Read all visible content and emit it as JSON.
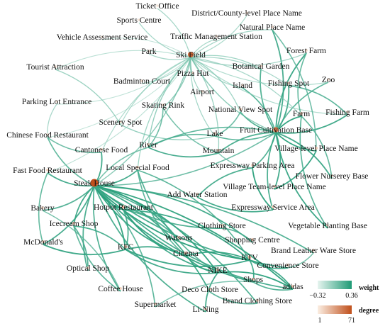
{
  "nodes": [
    {
      "id": "ticket-office",
      "label": "Ticket Office",
      "degree": 4
    },
    {
      "id": "sports-centre",
      "label": "Sports Centre",
      "degree": 4
    },
    {
      "id": "district-county-level-place-name",
      "label": "District/County-level Place Name",
      "degree": 5
    },
    {
      "id": "natural-place-name",
      "label": "Natural Place Name",
      "degree": 6
    },
    {
      "id": "vehicle-assessment-service",
      "label": "Vehicle Assessment Service",
      "degree": 3
    },
    {
      "id": "traffic-management-station",
      "label": "Traffic Management Station",
      "degree": 5
    },
    {
      "id": "forest-farm",
      "label": "Forest Farm",
      "degree": 7
    },
    {
      "id": "park",
      "label": "Park",
      "degree": 6
    },
    {
      "id": "ski-field",
      "label": "Ski Field",
      "degree": 45
    },
    {
      "id": "botanical-garden",
      "label": "Botanical Garden",
      "degree": 8
    },
    {
      "id": "tourist-attraction",
      "label": "Tourist Attraction",
      "degree": 5
    },
    {
      "id": "pizza-hut",
      "label": "Pizza Hut",
      "degree": 7
    },
    {
      "id": "zoo",
      "label": "Zoo",
      "degree": 6
    },
    {
      "id": "badminton-court",
      "label": "Badminton Court",
      "degree": 5
    },
    {
      "id": "island",
      "label": "Island",
      "degree": 6
    },
    {
      "id": "fishing-spot",
      "label": "Fishing Spot",
      "degree": 8
    },
    {
      "id": "airport",
      "label": "Airport",
      "degree": 6
    },
    {
      "id": "parking-lot-entrance",
      "label": "Parking Lot Entrance",
      "degree": 4
    },
    {
      "id": "skating-rink",
      "label": "Skating Rink",
      "degree": 7
    },
    {
      "id": "national-view-spot",
      "label": "National View Spot",
      "degree": 9
    },
    {
      "id": "farm",
      "label": "Farm",
      "degree": 12
    },
    {
      "id": "fishing-farm",
      "label": "Fishing Farm",
      "degree": 8
    },
    {
      "id": "scenery-spot",
      "label": "Scenery Spot",
      "degree": 6
    },
    {
      "id": "fruit-cultivation-base",
      "label": "Fruit Cultivation Base",
      "degree": 40
    },
    {
      "id": "lake",
      "label": "Lake",
      "degree": 8
    },
    {
      "id": "chinese-food-restaurant",
      "label": "Chinese Food Restaurant",
      "degree": 6
    },
    {
      "id": "river",
      "label": "River",
      "degree": 9
    },
    {
      "id": "mountain",
      "label": "Mountain",
      "degree": 10
    },
    {
      "id": "village-level-place-name",
      "label": "Village-level Place Name",
      "degree": 12
    },
    {
      "id": "cantonese-food",
      "label": "Cantonese Food",
      "degree": 9
    },
    {
      "id": "expressway-parking-area",
      "label": "Expressway Parking Area",
      "degree": 9
    },
    {
      "id": "local-special-food",
      "label": "Local Special Food",
      "degree": 11
    },
    {
      "id": "fast-food-restaurant",
      "label": "Fast Food Restaurant",
      "degree": 10
    },
    {
      "id": "flower-nursery-base",
      "label": "Flower Nurserey Base",
      "degree": 8
    },
    {
      "id": "steak-house",
      "label": "Steak House",
      "degree": 71
    },
    {
      "id": "village-team-level-place-name",
      "label": "Village Team-level Place Name",
      "degree": 10
    },
    {
      "id": "add-water-station",
      "label": "Add Water Station",
      "degree": 7
    },
    {
      "id": "bakery",
      "label": "Bakery",
      "degree": 8
    },
    {
      "id": "hotpot-restaurant",
      "label": "Hotpot Restaurant",
      "degree": 18
    },
    {
      "id": "expressway-service-area",
      "label": "Expressway Service Area",
      "degree": 12
    },
    {
      "id": "clothing-store",
      "label": "Clothing Store",
      "degree": 10
    },
    {
      "id": "icecream-shop",
      "label": "Icecream Shop",
      "degree": 12
    },
    {
      "id": "vegetable-planting-base",
      "label": "Vegetable Planting Base",
      "degree": 7
    },
    {
      "id": "watsons",
      "label": "Watsons",
      "degree": 10
    },
    {
      "id": "shopping-centre",
      "label": "Shopping Centre",
      "degree": 12
    },
    {
      "id": "mcdonalds",
      "label": "McDonald's",
      "degree": 10
    },
    {
      "id": "kfc",
      "label": "KFC",
      "degree": 14
    },
    {
      "id": "cinema",
      "label": "Cinema",
      "degree": 14
    },
    {
      "id": "brand-leather-ware-store",
      "label": "Brand Leather Ware Store",
      "degree": 9
    },
    {
      "id": "ktv",
      "label": "KTV",
      "degree": 18
    },
    {
      "id": "optical-shop",
      "label": "Optical Shop",
      "degree": 9
    },
    {
      "id": "nike",
      "label": "NIKE",
      "degree": 14
    },
    {
      "id": "convenience-store",
      "label": "Convenience Store",
      "degree": 11
    },
    {
      "id": "shops",
      "label": "Shops",
      "degree": 12
    },
    {
      "id": "coffee-house",
      "label": "Coffee House",
      "degree": 9
    },
    {
      "id": "adidas",
      "label": "adidas",
      "degree": 12
    },
    {
      "id": "deco-cloth-store",
      "label": "Deco Cloth Store",
      "degree": 11
    },
    {
      "id": "brand-clothing-store",
      "label": "Brand Clothing Store",
      "degree": 10
    },
    {
      "id": "supermarket",
      "label": "Supermarket",
      "degree": 9
    },
    {
      "id": "li-ning",
      "label": "Li-Ning",
      "degree": 10
    }
  ],
  "edges": [
    {
      "source": "steak-house",
      "target": "hotpot-restaurant",
      "weight": 0.36
    },
    {
      "source": "steak-house",
      "target": "kfc",
      "weight": 0.33
    },
    {
      "source": "steak-house",
      "target": "cinema",
      "weight": 0.32
    },
    {
      "source": "steak-house",
      "target": "nike",
      "weight": 0.34
    },
    {
      "source": "steak-house",
      "target": "ktv",
      "weight": 0.35
    },
    {
      "source": "steak-house",
      "target": "adidas",
      "weight": 0.33
    },
    {
      "source": "steak-house",
      "target": "shops",
      "weight": 0.32
    },
    {
      "source": "steak-house",
      "target": "deco-cloth-store",
      "weight": 0.3
    },
    {
      "source": "steak-house",
      "target": "li-ning",
      "weight": 0.28
    },
    {
      "source": "steak-house",
      "target": "brand-clothing-store",
      "weight": 0.27
    },
    {
      "source": "steak-house",
      "target": "convenience-store",
      "weight": 0.29
    },
    {
      "source": "steak-house",
      "target": "watsons",
      "weight": 0.31
    },
    {
      "source": "steak-house",
      "target": "icecream-shop",
      "weight": 0.3
    },
    {
      "source": "steak-house",
      "target": "mcdonalds",
      "weight": 0.29
    },
    {
      "source": "steak-house",
      "target": "optical-shop",
      "weight": 0.28
    },
    {
      "source": "steak-house",
      "target": "bakery",
      "weight": 0.26
    },
    {
      "source": "steak-house",
      "target": "coffee-house",
      "weight": 0.27
    },
    {
      "source": "steak-house",
      "target": "fast-food-restaurant",
      "weight": 0.29
    },
    {
      "source": "steak-house",
      "target": "cantonese-food",
      "weight": 0.3
    },
    {
      "source": "steak-house",
      "target": "chinese-food-restaurant",
      "weight": 0.22
    },
    {
      "source": "steak-house",
      "target": "local-special-food",
      "weight": 0.3
    },
    {
      "source": "steak-house",
      "target": "shopping-centre",
      "weight": 0.3
    },
    {
      "source": "steak-house",
      "target": "clothing-store",
      "weight": 0.28
    },
    {
      "source": "steak-house",
      "target": "supermarket",
      "weight": 0.24
    },
    {
      "source": "steak-house",
      "target": "ski-field",
      "weight": 0.12
    },
    {
      "source": "steak-house",
      "target": "river",
      "weight": 0.18
    },
    {
      "source": "steak-house",
      "target": "fruit-cultivation-base",
      "weight": 0.2
    },
    {
      "source": "steak-house",
      "target": "brand-leather-ware-store",
      "weight": 0.27
    },
    {
      "source": "hotpot-restaurant",
      "target": "nike",
      "weight": 0.3
    },
    {
      "source": "hotpot-restaurant",
      "target": "ktv",
      "weight": 0.31
    },
    {
      "source": "hotpot-restaurant",
      "target": "cinema",
      "weight": 0.3
    },
    {
      "source": "hotpot-restaurant",
      "target": "kfc",
      "weight": 0.28
    },
    {
      "source": "hotpot-restaurant",
      "target": "adidas",
      "weight": 0.29
    },
    {
      "source": "hotpot-restaurant",
      "target": "watsons",
      "weight": 0.27
    },
    {
      "source": "kfc",
      "target": "nike",
      "weight": 0.3
    },
    {
      "source": "kfc",
      "target": "cinema",
      "weight": 0.29
    },
    {
      "source": "kfc",
      "target": "ktv",
      "weight": 0.31
    },
    {
      "source": "kfc",
      "target": "mcdonalds",
      "weight": 0.32
    },
    {
      "source": "kfc",
      "target": "icecream-shop",
      "weight": 0.28
    },
    {
      "source": "cinema",
      "target": "ktv",
      "weight": 0.32
    },
    {
      "source": "cinema",
      "target": "nike",
      "weight": 0.3
    },
    {
      "source": "nike",
      "target": "adidas",
      "weight": 0.34
    },
    {
      "source": "nike",
      "target": "li-ning",
      "weight": 0.3
    },
    {
      "source": "ktv",
      "target": "shops",
      "weight": 0.29
    },
    {
      "source": "ktv",
      "target": "convenience-store",
      "weight": 0.28
    },
    {
      "source": "ktv",
      "target": "adidas",
      "weight": 0.3
    },
    {
      "source": "local-special-food",
      "target": "nike",
      "weight": 0.26
    },
    {
      "source": "local-special-food",
      "target": "ktv",
      "weight": 0.25
    },
    {
      "source": "local-special-food",
      "target": "cinema",
      "weight": 0.24
    },
    {
      "source": "icecream-shop",
      "target": "optical-shop",
      "weight": 0.26
    },
    {
      "source": "icecream-shop",
      "target": "coffee-house",
      "weight": 0.24
    },
    {
      "source": "fruit-cultivation-base",
      "target": "farm",
      "weight": 0.33
    },
    {
      "source": "fruit-cultivation-base",
      "target": "fishing-farm",
      "weight": 0.3
    },
    {
      "source": "fruit-cultivation-base",
      "target": "forest-farm",
      "weight": 0.31
    },
    {
      "source": "fruit-cultivation-base",
      "target": "natural-place-name",
      "weight": 0.29
    },
    {
      "source": "fruit-cultivation-base",
      "target": "botanical-garden",
      "weight": 0.27
    },
    {
      "source": "fruit-cultivation-base",
      "target": "fishing-spot",
      "weight": 0.3
    },
    {
      "source": "fruit-cultivation-base",
      "target": "zoo",
      "weight": 0.24
    },
    {
      "source": "fruit-cultivation-base",
      "target": "island",
      "weight": 0.25
    },
    {
      "source": "fruit-cultivation-base",
      "target": "national-view-spot",
      "weight": 0.28
    },
    {
      "source": "fruit-cultivation-base",
      "target": "village-level-place-name",
      "weight": 0.33
    },
    {
      "source": "fruit-cultivation-base",
      "target": "flower-nursery-base",
      "weight": 0.3
    },
    {
      "source": "fruit-cultivation-base",
      "target": "vegetable-planting-base",
      "weight": 0.31
    },
    {
      "source": "fruit-cultivation-base",
      "target": "expressway-parking-area",
      "weight": 0.27
    },
    {
      "source": "fruit-cultivation-base",
      "target": "expressway-service-area",
      "weight": 0.28
    },
    {
      "source": "fruit-cultivation-base",
      "target": "village-team-level-place-name",
      "weight": 0.3
    },
    {
      "source": "fruit-cultivation-base",
      "target": "mountain",
      "weight": 0.28
    },
    {
      "source": "fruit-cultivation-base",
      "target": "lake",
      "weight": 0.25
    },
    {
      "source": "fruit-cultivation-base",
      "target": "river",
      "weight": 0.24
    },
    {
      "source": "fruit-cultivation-base",
      "target": "ski-field",
      "weight": 0.12
    },
    {
      "source": "expressway-parking-area",
      "target": "expressway-service-area",
      "weight": 0.33
    },
    {
      "source": "expressway-service-area",
      "target": "add-water-station",
      "weight": 0.3
    },
    {
      "source": "expressway-parking-area",
      "target": "add-water-station",
      "weight": 0.28
    },
    {
      "source": "village-level-place-name",
      "target": "village-team-level-place-name",
      "weight": 0.32
    },
    {
      "source": "river",
      "target": "mountain",
      "weight": 0.29
    },
    {
      "source": "river",
      "target": "lake",
      "weight": 0.24
    },
    {
      "source": "ski-field",
      "target": "ticket-office",
      "weight": 0.05
    },
    {
      "source": "ski-field",
      "target": "sports-centre",
      "weight": 0.04
    },
    {
      "source": "ski-field",
      "target": "district-county-level-place-name",
      "weight": 0.02
    },
    {
      "source": "ski-field",
      "target": "traffic-management-station",
      "weight": 0.03
    },
    {
      "source": "ski-field",
      "target": "vehicle-assessment-service",
      "weight": -0.05
    },
    {
      "source": "ski-field",
      "target": "park",
      "weight": 0.04
    },
    {
      "source": "ski-field",
      "target": "pizza-hut",
      "weight": 0.06
    },
    {
      "source": "ski-field",
      "target": "badminton-court",
      "weight": 0.03
    },
    {
      "source": "ski-field",
      "target": "airport",
      "weight": 0.05
    },
    {
      "source": "ski-field",
      "target": "skating-rink",
      "weight": 0.12
    },
    {
      "source": "ski-field",
      "target": "tourist-attraction",
      "weight": -0.02
    },
    {
      "source": "ski-field",
      "target": "parking-lot-entrance",
      "weight": -0.04
    },
    {
      "source": "ski-field",
      "target": "scenery-spot",
      "weight": 0.02
    },
    {
      "source": "ski-field",
      "target": "natural-place-name",
      "weight": 0.05
    },
    {
      "source": "ski-field",
      "target": "forest-farm",
      "weight": 0.04
    },
    {
      "source": "ski-field",
      "target": "botanical-garden",
      "weight": 0.06
    },
    {
      "source": "ski-field",
      "target": "island",
      "weight": 0.03
    },
    {
      "source": "ski-field",
      "target": "fishing-spot",
      "weight": 0.04
    },
    {
      "source": "ski-field",
      "target": "zoo",
      "weight": 0.02
    },
    {
      "source": "ski-field",
      "target": "national-view-spot",
      "weight": 0.07
    },
    {
      "source": "ski-field",
      "target": "lake",
      "weight": 0.05
    },
    {
      "source": "ski-field",
      "target": "mountain",
      "weight": 0.08
    },
    {
      "source": "ski-field",
      "target": "river",
      "weight": 0.1
    },
    {
      "source": "ski-field",
      "target": "chinese-food-restaurant",
      "weight": -0.06
    },
    {
      "source": "ski-field",
      "target": "cantonese-food",
      "weight": 0.02
    },
    {
      "source": "ski-field",
      "target": "fast-food-restaurant",
      "weight": -0.03
    },
    {
      "source": "ski-field",
      "target": "local-special-food",
      "weight": 0.06
    },
    {
      "source": "ski-field",
      "target": "farm",
      "weight": 0.04
    },
    {
      "source": "ski-field",
      "target": "fishing-farm",
      "weight": 0.02
    },
    {
      "source": "skating-rink",
      "target": "river",
      "weight": 0.2
    },
    {
      "source": "skating-rink",
      "target": "mountain",
      "weight": 0.18
    },
    {
      "source": "national-view-spot",
      "target": "lake",
      "weight": 0.2
    },
    {
      "source": "scenery-spot",
      "target": "lake",
      "weight": 0.1
    },
    {
      "source": "tourist-attraction",
      "target": "scenery-spot",
      "weight": 0.08
    },
    {
      "source": "parking-lot-entrance",
      "target": "chinese-food-restaurant",
      "weight": 0.04
    },
    {
      "source": "cantonese-food",
      "target": "chinese-food-restaurant",
      "weight": 0.2
    },
    {
      "source": "fast-food-restaurant",
      "target": "mcdonalds",
      "weight": 0.22
    },
    {
      "source": "bakery",
      "target": "coffee-house",
      "weight": 0.18
    },
    {
      "source": "shopping-centre",
      "target": "clothing-store",
      "weight": 0.24
    },
    {
      "source": "brand-leather-ware-store",
      "target": "convenience-store",
      "weight": 0.18
    },
    {
      "source": "deco-cloth-store",
      "target": "brand-clothing-store",
      "weight": 0.24
    },
    {
      "source": "supermarket",
      "target": "shops",
      "weight": 0.16
    },
    {
      "source": "shops",
      "target": "adidas",
      "weight": 0.26
    },
    {
      "source": "fishing-spot",
      "target": "fishing-farm",
      "weight": 0.24
    },
    {
      "source": "forest-farm",
      "target": "farm",
      "weight": 0.22
    },
    {
      "source": "farm",
      "target": "flower-nursery-base",
      "weight": 0.22
    },
    {
      "source": "farm",
      "target": "vegetable-planting-base",
      "weight": 0.25
    },
    {
      "source": "natural-place-name",
      "target": "village-level-place-name",
      "weight": 0.2
    },
    {
      "source": "mountain",
      "target": "expressway-parking-area",
      "weight": 0.16
    }
  ],
  "legend": {
    "weight": {
      "title": "weight",
      "min_label": "−0.32",
      "max_label": "0.36",
      "min_color": "#e6f4ef",
      "max_color": "#1e9a75"
    },
    "degree": {
      "title": "degree",
      "min_label": "1",
      "max_label": "71",
      "min_color": "#fbeee2",
      "max_color": "#c0501c"
    }
  }
}
